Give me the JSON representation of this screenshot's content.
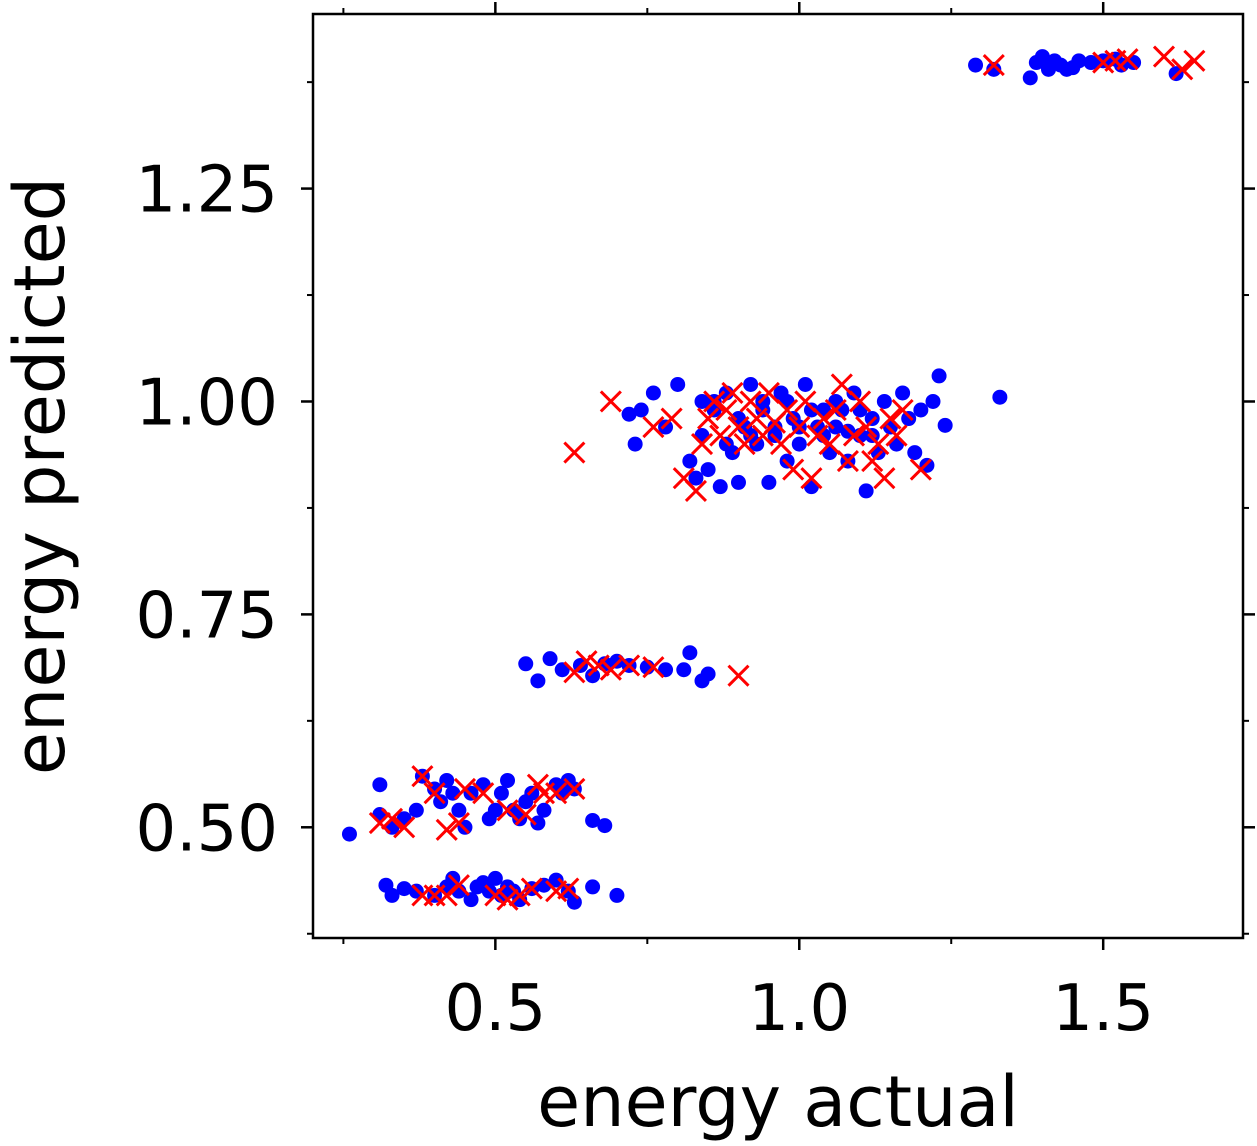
{
  "chart_data": {
    "type": "scatter",
    "title": "",
    "xlabel": "energy actual",
    "ylabel": "energy predicted",
    "xlim": [
      0.2,
      1.73
    ],
    "ylim": [
      0.37,
      1.455
    ],
    "xticks": [
      {
        "value": 0.5,
        "label": "0.5"
      },
      {
        "value": 1.0,
        "label": "1.0"
      },
      {
        "value": 1.5,
        "label": "1.5"
      }
    ],
    "yticks": [
      {
        "value": 0.5,
        "label": "0.50"
      },
      {
        "value": 0.75,
        "label": "0.75"
      },
      {
        "value": 1.0,
        "label": "1.00"
      },
      {
        "value": 1.25,
        "label": "1.25"
      }
    ],
    "minor_xticks": [
      0.25,
      0.75,
      1.25
    ],
    "minor_yticks": [
      0.375,
      0.625,
      0.875,
      1.125,
      1.375
    ],
    "grid": false,
    "series": [
      {
        "marker": "dot",
        "color": "#0000ff",
        "points": [
          [
            0.26,
            0.492
          ],
          [
            0.31,
            0.55
          ],
          [
            0.31,
            0.515
          ],
          [
            0.33,
            0.5
          ],
          [
            0.35,
            0.51
          ],
          [
            0.37,
            0.52
          ],
          [
            0.38,
            0.56
          ],
          [
            0.4,
            0.545
          ],
          [
            0.41,
            0.53
          ],
          [
            0.42,
            0.555
          ],
          [
            0.43,
            0.54
          ],
          [
            0.44,
            0.52
          ],
          [
            0.45,
            0.5
          ],
          [
            0.46,
            0.54
          ],
          [
            0.48,
            0.55
          ],
          [
            0.49,
            0.51
          ],
          [
            0.5,
            0.52
          ],
          [
            0.51,
            0.54
          ],
          [
            0.52,
            0.555
          ],
          [
            0.53,
            0.52
          ],
          [
            0.54,
            0.51
          ],
          [
            0.55,
            0.53
          ],
          [
            0.56,
            0.54
          ],
          [
            0.57,
            0.505
          ],
          [
            0.58,
            0.52
          ],
          [
            0.6,
            0.55
          ],
          [
            0.61,
            0.54
          ],
          [
            0.62,
            0.555
          ],
          [
            0.63,
            0.545
          ],
          [
            0.66,
            0.508
          ],
          [
            0.68,
            0.502
          ],
          [
            0.32,
            0.432
          ],
          [
            0.33,
            0.42
          ],
          [
            0.35,
            0.428
          ],
          [
            0.37,
            0.425
          ],
          [
            0.4,
            0.42
          ],
          [
            0.42,
            0.43
          ],
          [
            0.43,
            0.44
          ],
          [
            0.44,
            0.425
          ],
          [
            0.46,
            0.415
          ],
          [
            0.47,
            0.43
          ],
          [
            0.48,
            0.435
          ],
          [
            0.49,
            0.425
          ],
          [
            0.5,
            0.44
          ],
          [
            0.51,
            0.42
          ],
          [
            0.52,
            0.43
          ],
          [
            0.53,
            0.425
          ],
          [
            0.54,
            0.415
          ],
          [
            0.56,
            0.428
          ],
          [
            0.58,
            0.432
          ],
          [
            0.6,
            0.438
          ],
          [
            0.62,
            0.425
          ],
          [
            0.63,
            0.412
          ],
          [
            0.66,
            0.43
          ],
          [
            0.7,
            0.42
          ],
          [
            0.55,
            0.692
          ],
          [
            0.57,
            0.672
          ],
          [
            0.59,
            0.698
          ],
          [
            0.61,
            0.685
          ],
          [
            0.64,
            0.69
          ],
          [
            0.66,
            0.678
          ],
          [
            0.68,
            0.692
          ],
          [
            0.7,
            0.695
          ],
          [
            0.72,
            0.69
          ],
          [
            0.75,
            0.688
          ],
          [
            0.78,
            0.685
          ],
          [
            0.81,
            0.685
          ],
          [
            0.82,
            0.705
          ],
          [
            0.84,
            0.672
          ],
          [
            0.85,
            0.68
          ],
          [
            0.72,
            0.985
          ],
          [
            0.73,
            0.95
          ],
          [
            0.74,
            0.99
          ],
          [
            0.76,
            1.01
          ],
          [
            0.78,
            0.97
          ],
          [
            0.8,
            1.02
          ],
          [
            0.82,
            0.93
          ],
          [
            0.83,
            0.91
          ],
          [
            0.84,
            1.0
          ],
          [
            0.85,
            0.92
          ],
          [
            0.86,
            0.99
          ],
          [
            0.87,
            0.9
          ],
          [
            0.88,
            1.01
          ],
          [
            0.89,
            0.94
          ],
          [
            0.9,
            0.905
          ],
          [
            0.91,
            0.97
          ],
          [
            0.92,
            1.02
          ],
          [
            0.93,
            0.95
          ],
          [
            0.94,
            0.99
          ],
          [
            0.95,
            0.905
          ],
          [
            0.96,
            0.96
          ],
          [
            0.97,
            1.01
          ],
          [
            0.98,
            0.93
          ],
          [
            0.99,
            0.98
          ],
          [
            1.0,
            0.95
          ],
          [
            1.01,
            1.02
          ],
          [
            1.02,
            0.9
          ],
          [
            1.03,
            0.97
          ],
          [
            1.04,
            0.99
          ],
          [
            1.05,
            0.94
          ],
          [
            1.06,
            0.97
          ],
          [
            1.07,
            0.99
          ],
          [
            1.08,
            0.93
          ],
          [
            1.09,
            1.01
          ],
          [
            1.1,
            0.96
          ],
          [
            1.11,
            0.895
          ],
          [
            1.12,
            0.98
          ],
          [
            1.13,
            0.94
          ],
          [
            1.14,
            1.0
          ],
          [
            1.15,
            0.97
          ],
          [
            1.16,
            0.95
          ],
          [
            1.17,
            1.01
          ],
          [
            1.18,
            0.98
          ],
          [
            1.19,
            0.94
          ],
          [
            1.2,
            0.99
          ],
          [
            1.21,
            0.925
          ],
          [
            1.22,
            1.0
          ],
          [
            1.23,
            1.03
          ],
          [
            1.24,
            0.972
          ],
          [
            1.33,
            1.005
          ],
          [
            0.84,
            0.96
          ],
          [
            0.86,
            1.0
          ],
          [
            0.88,
            0.95
          ],
          [
            0.9,
            0.98
          ],
          [
            0.92,
            0.96
          ],
          [
            0.94,
            1.0
          ],
          [
            0.96,
            0.97
          ],
          [
            0.98,
            1.0
          ],
          [
            1.0,
            0.97
          ],
          [
            1.02,
            0.99
          ],
          [
            1.04,
            0.96
          ],
          [
            1.06,
            1.0
          ],
          [
            1.08,
            0.965
          ],
          [
            1.1,
            0.99
          ],
          [
            1.12,
            0.96
          ],
          [
            1.29,
            1.395
          ],
          [
            1.32,
            1.39
          ],
          [
            1.38,
            1.38
          ],
          [
            1.39,
            1.398
          ],
          [
            1.4,
            1.405
          ],
          [
            1.41,
            1.39
          ],
          [
            1.42,
            1.4
          ],
          [
            1.43,
            1.395
          ],
          [
            1.44,
            1.39
          ],
          [
            1.45,
            1.392
          ],
          [
            1.46,
            1.4
          ],
          [
            1.48,
            1.398
          ],
          [
            1.5,
            1.4
          ],
          [
            1.52,
            1.402
          ],
          [
            1.53,
            1.395
          ],
          [
            1.55,
            1.398
          ],
          [
            1.62,
            1.385
          ]
        ]
      },
      {
        "marker": "x",
        "color": "#ff0000",
        "points": [
          [
            0.31,
            0.505
          ],
          [
            0.33,
            0.51
          ],
          [
            0.35,
            0.5
          ],
          [
            0.38,
            0.56
          ],
          [
            0.4,
            0.54
          ],
          [
            0.42,
            0.497
          ],
          [
            0.44,
            0.505
          ],
          [
            0.45,
            0.545
          ],
          [
            0.48,
            0.54
          ],
          [
            0.52,
            0.52
          ],
          [
            0.55,
            0.515
          ],
          [
            0.57,
            0.55
          ],
          [
            0.58,
            0.54
          ],
          [
            0.6,
            0.54
          ],
          [
            0.63,
            0.545
          ],
          [
            0.38,
            0.42
          ],
          [
            0.4,
            0.42
          ],
          [
            0.42,
            0.42
          ],
          [
            0.44,
            0.432
          ],
          [
            0.5,
            0.42
          ],
          [
            0.52,
            0.415
          ],
          [
            0.54,
            0.42
          ],
          [
            0.56,
            0.428
          ],
          [
            0.6,
            0.425
          ],
          [
            0.62,
            0.428
          ],
          [
            0.63,
            0.682
          ],
          [
            0.65,
            0.695
          ],
          [
            0.67,
            0.69
          ],
          [
            0.69,
            0.685
          ],
          [
            0.72,
            0.69
          ],
          [
            0.76,
            0.688
          ],
          [
            0.9,
            0.678
          ],
          [
            0.63,
            0.94
          ],
          [
            0.69,
            1.0
          ],
          [
            0.76,
            0.97
          ],
          [
            0.79,
            0.98
          ],
          [
            0.81,
            0.91
          ],
          [
            0.83,
            0.895
          ],
          [
            0.84,
            0.95
          ],
          [
            0.85,
            0.98
          ],
          [
            0.86,
            1.0
          ],
          [
            0.87,
            0.96
          ],
          [
            0.88,
            0.99
          ],
          [
            0.89,
            1.01
          ],
          [
            0.9,
            0.97
          ],
          [
            0.91,
            0.95
          ],
          [
            0.92,
            1.0
          ],
          [
            0.93,
            0.98
          ],
          [
            0.94,
            0.96
          ],
          [
            0.95,
            1.01
          ],
          [
            0.96,
            0.975
          ],
          [
            0.97,
            0.95
          ],
          [
            0.98,
            0.99
          ],
          [
            0.99,
            0.92
          ],
          [
            1.0,
            0.97
          ],
          [
            1.01,
            1.0
          ],
          [
            1.02,
            0.91
          ],
          [
            1.03,
            0.96
          ],
          [
            1.04,
            0.98
          ],
          [
            1.05,
            0.95
          ],
          [
            1.06,
            0.99
          ],
          [
            1.07,
            1.02
          ],
          [
            1.08,
            0.93
          ],
          [
            1.09,
            0.96
          ],
          [
            1.1,
            1.0
          ],
          [
            1.11,
            0.97
          ],
          [
            1.12,
            0.93
          ],
          [
            1.13,
            0.95
          ],
          [
            1.14,
            0.91
          ],
          [
            1.15,
            0.98
          ],
          [
            1.16,
            0.96
          ],
          [
            1.17,
            0.99
          ],
          [
            1.2,
            0.92
          ],
          [
            1.32,
            1.395
          ],
          [
            1.5,
            1.398
          ],
          [
            1.52,
            1.4
          ],
          [
            1.54,
            1.402
          ],
          [
            1.6,
            1.405
          ],
          [
            1.63,
            1.39
          ],
          [
            1.65,
            1.4
          ]
        ]
      }
    ]
  }
}
